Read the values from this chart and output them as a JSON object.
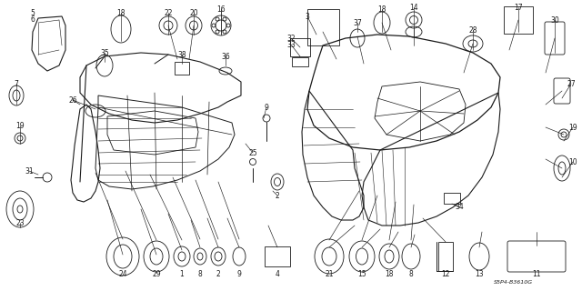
{
  "bg_color": "#ffffff",
  "fg_color": "#1a1a1a",
  "lw": 0.6,
  "figsize": [
    6.4,
    3.2
  ],
  "dpi": 100
}
